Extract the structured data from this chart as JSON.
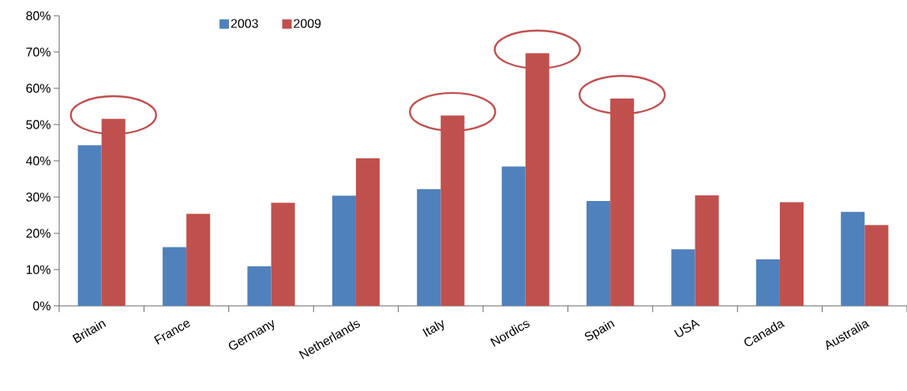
{
  "chart_data": {
    "type": "bar",
    "categories": [
      "Britain",
      "France",
      "Germany",
      "Netherlands",
      "Italy",
      "Nordics",
      "Spain",
      "USA",
      "Canada",
      "Australia"
    ],
    "series": [
      {
        "name": "2003",
        "color": "#4f81bd",
        "values": [
          44.3,
          16.2,
          10.9,
          30.4,
          32.2,
          38.4,
          28.9,
          15.6,
          12.8,
          25.9
        ]
      },
      {
        "name": "2009",
        "color": "#c0504d",
        "values": [
          51.6,
          25.4,
          28.4,
          40.7,
          52.5,
          69.7,
          57.2,
          30.5,
          28.6,
          22.3
        ]
      }
    ],
    "ylim": [
      0,
      80
    ],
    "yticks": [
      {
        "value": 0,
        "label": "0%"
      },
      {
        "value": 10,
        "label": "10%"
      },
      {
        "value": 20,
        "label": "20%"
      },
      {
        "value": 30,
        "label": "30%"
      },
      {
        "value": 40,
        "label": "40%"
      },
      {
        "value": 50,
        "label": "50%"
      },
      {
        "value": 60,
        "label": "60%"
      },
      {
        "value": 70,
        "label": "70%"
      },
      {
        "value": 80,
        "label": "80%"
      }
    ],
    "grid": false,
    "legend": "top"
  }
}
